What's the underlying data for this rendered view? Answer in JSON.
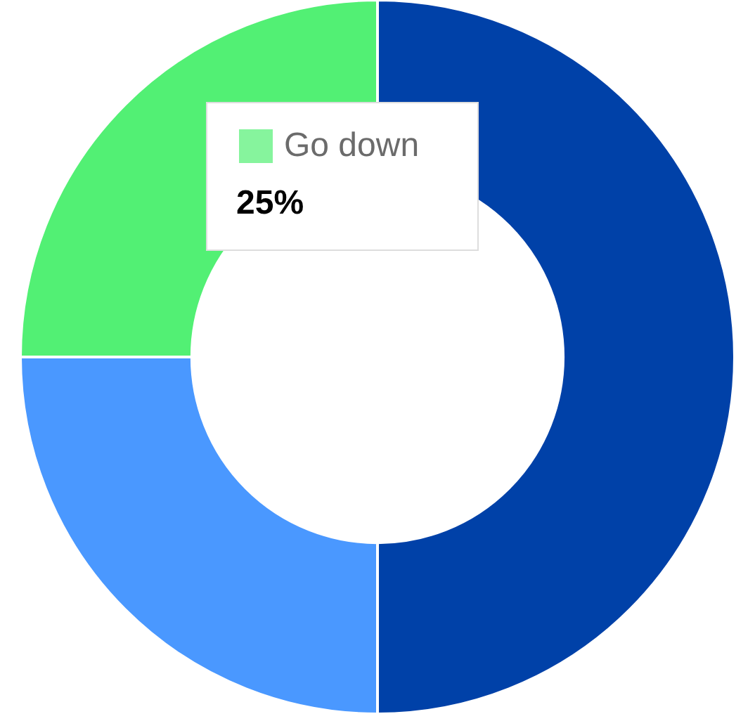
{
  "chart_data": {
    "type": "donut",
    "categories": [
      null,
      null,
      "Go down"
    ],
    "values": [
      50,
      25,
      25
    ],
    "colors": [
      "#0041a8",
      "#4a98ff",
      "#52f074"
    ],
    "value_labels": [
      null,
      null,
      "25%"
    ],
    "legend": "top left"
  }
}
